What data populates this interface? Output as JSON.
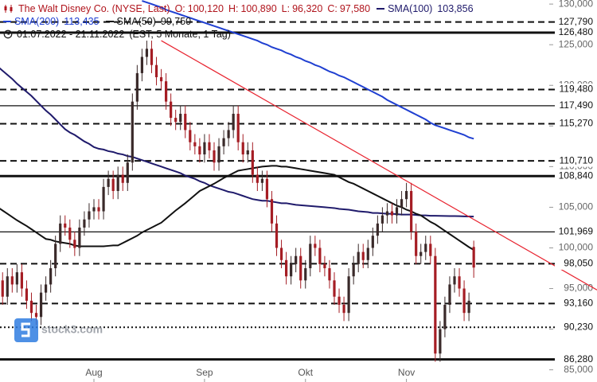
{
  "chart_data": {
    "type": "candlestick",
    "categories": [
      null,
      null,
      null,
      null,
      null,
      null,
      null,
      null,
      null,
      null,
      null,
      null,
      null,
      null,
      null,
      null,
      null,
      null,
      null,
      null,
      "Aug",
      null,
      null,
      null,
      null,
      null,
      null,
      null,
      null,
      null,
      null,
      null,
      null,
      null,
      null,
      null,
      null,
      null,
      null,
      null,
      null,
      null,
      null,
      "Sep",
      null,
      null,
      null,
      null,
      null,
      null,
      null,
      null,
      null,
      null,
      null,
      null,
      null,
      null,
      null,
      null,
      null,
      null,
      null,
      null,
      "Okt",
      null,
      null,
      null,
      null,
      null,
      null,
      null,
      null,
      null,
      null,
      null,
      null,
      null,
      null,
      null,
      null,
      null,
      null,
      null,
      null,
      "Nov",
      null,
      null,
      null,
      null,
      null,
      null,
      null,
      null,
      null,
      null,
      null,
      null,
      null,
      null
    ],
    "candles": {
      "name": "The Walt Disney Co. (NYSE, Last)",
      "up_color": "#3a2a2a",
      "down_color": "#a51d24",
      "open": [
        97,
        96,
        94,
        96.5,
        95.5,
        97,
        95,
        93.5,
        92,
        91.5,
        94.5,
        95.5,
        97.5,
        100.5,
        103,
        102.5,
        101,
        100,
        102.5,
        103.5,
        104.5,
        105,
        104.5,
        107.5,
        108.5,
        107,
        109,
        108,
        110.5,
        118,
        121.5,
        123.5,
        124.5,
        122.5,
        121,
        120.5,
        118,
        116,
        115.5,
        116.5,
        114.5,
        113,
        112.5,
        111.5,
        113,
        112,
        110.5,
        112.5,
        113.5,
        114.5,
        116.5,
        113,
        111.5,
        112,
        109,
        108,
        108.5,
        106,
        103,
        100,
        98.5,
        96.5,
        98,
        99,
        96,
        97.5,
        100.5,
        100,
        98,
        97.5,
        96,
        94,
        93,
        92,
        96.5,
        98,
        99.5,
        98.5,
        100,
        101.5,
        103,
        104,
        104.5,
        104,
        105,
        106,
        107,
        102,
        99,
        99.5,
        100.5,
        99,
        87,
        90,
        93,
        95.5,
        96.5,
        95,
        92,
        100.12
      ],
      "high": [
        98,
        97,
        97.5,
        97.5,
        98,
        98,
        96,
        94.5,
        93,
        95.5,
        96.5,
        98.5,
        101.5,
        104,
        104,
        103.5,
        102,
        103.5,
        104.5,
        105.5,
        106,
        106,
        108.5,
        109.5,
        109.5,
        110,
        110,
        111.5,
        119,
        122.5,
        124.5,
        125.5,
        125.5,
        123.5,
        122,
        121.5,
        119,
        117,
        117.5,
        117.5,
        115.5,
        114,
        113.5,
        114,
        114,
        113,
        113.5,
        114.5,
        115.5,
        117.5,
        117.5,
        114,
        113,
        113,
        110,
        109.5,
        109.5,
        107,
        104,
        101,
        99.5,
        99,
        100,
        100,
        98.5,
        101.5,
        101.5,
        101,
        99,
        98.5,
        97,
        95,
        94,
        97.5,
        99,
        100.5,
        100.5,
        101,
        102.5,
        104,
        105,
        105.5,
        105.5,
        106,
        107,
        108,
        108,
        103,
        100.5,
        101.5,
        101.5,
        100,
        91,
        94,
        96.5,
        97.5,
        97.5,
        96,
        94.5,
        100.89
      ],
      "low": [
        95,
        93,
        93,
        94.5,
        94.5,
        94,
        92.5,
        91,
        90.5,
        90.5,
        93.5,
        94.5,
        96.5,
        99.5,
        101.5,
        100,
        99,
        99,
        101.5,
        102.5,
        103.5,
        103.5,
        103.5,
        106.5,
        106,
        106,
        107,
        107,
        109.5,
        117,
        120.5,
        122.5,
        121.5,
        120,
        119.5,
        117,
        115,
        114.5,
        114.5,
        113.5,
        112,
        111.5,
        110.5,
        110.5,
        111,
        109.5,
        109.5,
        111.5,
        112.5,
        113.5,
        112,
        110.5,
        110.5,
        108,
        107,
        107,
        105,
        102,
        99,
        97.5,
        95.5,
        95.5,
        97,
        95,
        95,
        96.5,
        99,
        97,
        96.5,
        95,
        93,
        92,
        91,
        91,
        95.5,
        97,
        97.5,
        97.5,
        99,
        100.5,
        102,
        103,
        103,
        103,
        104,
        105,
        101,
        98,
        98,
        98.5,
        98,
        86,
        86,
        89,
        92,
        94.5,
        94,
        91,
        91,
        96.32
      ],
      "close": [
        96,
        94,
        96.5,
        95.5,
        97,
        95,
        93.5,
        92,
        91.5,
        94.5,
        95.5,
        97.5,
        100.5,
        103,
        102.5,
        101,
        100,
        102.5,
        103.5,
        104.5,
        105,
        104.5,
        107.5,
        108.5,
        107,
        109,
        108,
        110.5,
        118,
        121.5,
        123.5,
        124.5,
        122.5,
        121,
        120.5,
        118,
        116,
        115.5,
        116.5,
        114.5,
        113,
        112.5,
        111.5,
        113,
        112,
        110.5,
        112.5,
        113.5,
        114.5,
        116.5,
        113,
        111.5,
        112,
        109,
        108,
        108.5,
        106,
        103,
        100,
        98.5,
        96.5,
        98,
        99,
        96,
        97.5,
        100.5,
        100,
        98,
        97.5,
        96,
        94,
        93,
        92,
        96.5,
        98,
        99.5,
        98.5,
        100,
        101.5,
        103,
        104,
        104.5,
        104,
        105,
        106,
        107,
        102,
        99,
        99.5,
        100.5,
        99,
        87,
        90,
        93,
        95.5,
        96.5,
        95,
        92,
        93.5,
        97.58
      ]
    },
    "ohlc_legend": [
      {
        "key": "O:",
        "label": "100,120"
      },
      {
        "key": "H:",
        "label": "100,890"
      },
      {
        "key": "L:",
        "label": "96,320"
      },
      {
        "key": "C:",
        "label": "97,580"
      }
    ],
    "sma": [
      {
        "name": "SMA(100)",
        "color": "#1f1a6b",
        "last_label": "103,856",
        "values": [
          122.3,
          121.8,
          121.3,
          120.8,
          120.2,
          119.7,
          119.2,
          118.7,
          118.1,
          117.5,
          116.9,
          116.4,
          115.8,
          115.2,
          114.6,
          114.2,
          113.9,
          113.5,
          113.1,
          112.8,
          112.4,
          112.2,
          112.1,
          111.9,
          111.8,
          111.6,
          111.5,
          111.3,
          111.2,
          111,
          110.8,
          110.6,
          110.4,
          110.2,
          110,
          109.8,
          109.6,
          109.4,
          109.2,
          108.9,
          108.7,
          108.5,
          108.2,
          108,
          107.7,
          107.5,
          107.3,
          107.1,
          106.9,
          106.8,
          106.6,
          106.4,
          106.2,
          106,
          105.9,
          105.8,
          105.8,
          105.7,
          105.6,
          105.5,
          105.5,
          105.4,
          105.3,
          105.25,
          105.2,
          105.15,
          105.1,
          105.05,
          105,
          104.95,
          104.9,
          104.8,
          104.75,
          104.7,
          104.6,
          104.5,
          104.45,
          104.4,
          104.3,
          104.3,
          104.25,
          104.2,
          104.2,
          104.15,
          104.1,
          104.1,
          104.1,
          104.05,
          104,
          104,
          103.95,
          103.95,
          103.94,
          103.93,
          103.92,
          103.91,
          103.9,
          103.88,
          103.87,
          103.856
        ]
      },
      {
        "name": "SMA(200)",
        "color": "#1f3fd1",
        "last_label": "113,435",
        "values": [
          null,
          null,
          null,
          null,
          null,
          null,
          null,
          null,
          null,
          null,
          null,
          null,
          null,
          null,
          null,
          null,
          null,
          null,
          null,
          null,
          null,
          null,
          null,
          null,
          null,
          null,
          null,
          null,
          null,
          null,
          130.4,
          130.2,
          130,
          129.8,
          129.6,
          129.3,
          129.1,
          128.9,
          128.7,
          128.5,
          128.3,
          128.1,
          127.9,
          127.7,
          127.5,
          127.3,
          127.1,
          126.9,
          126.7,
          126.5,
          126.3,
          126.1,
          125.9,
          125.7,
          125.5,
          125.2,
          125,
          124.7,
          124.5,
          124.3,
          124,
          123.8,
          123.5,
          123.3,
          123,
          122.8,
          122.5,
          122.3,
          122,
          121.7,
          121.5,
          121.2,
          121,
          120.7,
          120.4,
          120.1,
          119.8,
          119.5,
          119.2,
          118.9,
          118.6,
          118.2,
          117.9,
          117.6,
          117.3,
          117,
          116.7,
          116.4,
          116.1,
          115.8,
          115.4,
          115.1,
          114.9,
          114.7,
          114.5,
          114.3,
          114.1,
          113.9,
          113.6,
          113.435
        ]
      },
      {
        "name": "SMA(50)",
        "color": "#111111",
        "last_label": "99,750",
        "values": [
          105,
          104.6,
          104.2,
          103.8,
          103.4,
          103.05,
          102.7,
          102.3,
          101.9,
          101.5,
          101.1,
          101,
          100.8,
          100.7,
          100.6,
          100.5,
          100.3,
          100.2,
          100.2,
          100.2,
          100.2,
          100.2,
          100.2,
          100.25,
          100.3,
          100.3,
          100.6,
          100.9,
          101.2,
          101.5,
          101.9,
          102.2,
          102.5,
          102.8,
          103.1,
          103.6,
          104.1,
          104.6,
          105.05,
          105.5,
          106,
          106.5,
          107,
          107.3,
          107.6,
          107.9,
          108.25,
          108.6,
          108.9,
          109.2,
          109.5,
          109.6,
          109.7,
          109.8,
          109.9,
          110,
          110.05,
          110.1,
          110.1,
          110,
          110,
          109.9,
          109.8,
          109.7,
          109.6,
          109.5,
          109.4,
          109.3,
          109.2,
          109.1,
          109,
          108.7,
          108.4,
          108.1,
          107.9,
          107.6,
          107.3,
          107,
          106.7,
          106.4,
          106.1,
          105.8,
          105.5,
          105.2,
          105,
          104.7,
          104.5,
          104.2,
          104,
          103.6,
          103.2,
          102.9,
          102.5,
          102.1,
          101.7,
          101.3,
          100.9,
          100.5,
          100.1,
          99.75
        ]
      }
    ],
    "trendline": {
      "color": "#e8232f",
      "values": [
        125.5,
        103.5
      ]
    },
    "levels": [
      {
        "value": 127.79,
        "label": "127,790",
        "style": "dashed"
      },
      {
        "value": 126.48,
        "label": "126,480",
        "style": "thick"
      },
      {
        "value": 119.48,
        "label": "119,480",
        "style": "dashed"
      },
      {
        "value": 117.49,
        "label": "117,490",
        "style": "solid"
      },
      {
        "value": 115.27,
        "label": "115,270",
        "style": "dashed"
      },
      {
        "value": 110.71,
        "label": "110,710",
        "style": "dashed"
      },
      {
        "value": 108.84,
        "label": "108,840",
        "style": "thick"
      },
      {
        "value": 101.969,
        "label": "101,969",
        "style": "solid"
      },
      {
        "value": 98.05,
        "label": "98,050",
        "style": "dashed"
      },
      {
        "value": 93.16,
        "label": "93,160",
        "style": "dashed"
      },
      {
        "value": 90.23,
        "label": "90,230",
        "style": "dotted"
      },
      {
        "value": 86.28,
        "label": "86,280",
        "style": "thick"
      }
    ],
    "ylim": [
      83.5,
      130.5
    ],
    "yticks": [
      {
        "value": 85,
        "label": "85,000"
      },
      {
        "value": 90,
        "label": "90,000"
      },
      {
        "value": 95,
        "label": "95,000"
      },
      {
        "value": 100,
        "label": "100,000"
      },
      {
        "value": 105,
        "label": "105,000"
      },
      {
        "value": 110,
        "label": "110,000"
      },
      {
        "value": 115,
        "label": "115,000"
      },
      {
        "value": 120,
        "label": "120,000"
      },
      {
        "value": 125,
        "label": "125,000"
      },
      {
        "value": 130,
        "label": "130,000"
      }
    ],
    "period": "01.07.2022 - 21.11.2022",
    "period_note": "(EST, 5 Monate, 1 Tag)",
    "watermark": "stock3.com"
  }
}
